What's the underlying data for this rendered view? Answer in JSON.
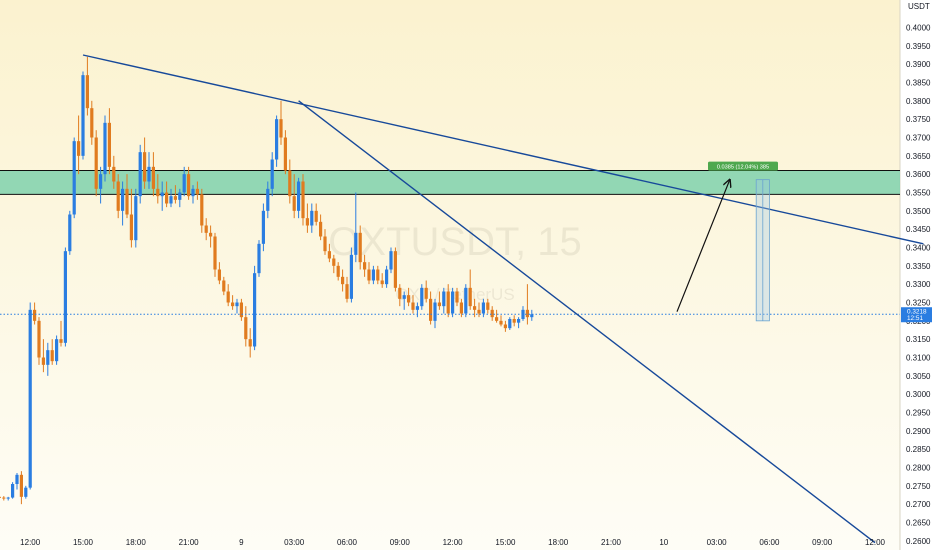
{
  "chart_data": {
    "type": "candlestick",
    "symbol": "OXTUSDT",
    "interval": "15",
    "watermark_main": "OXTUSDT, 15",
    "watermark_sub": "OXT / TetherUS",
    "quote_unit": "USDT",
    "ylim": [
      0.2575,
      0.4075
    ],
    "y_ticks": [
      "0.4000",
      "0.3950",
      "0.3900",
      "0.3850",
      "0.3800",
      "0.3750",
      "0.3700",
      "0.3650",
      "0.3600",
      "0.3550",
      "0.3500",
      "0.3450",
      "0.3400",
      "0.3350",
      "0.3300",
      "0.3250",
      "0.3200",
      "0.3150",
      "0.3100",
      "0.3050",
      "0.3000",
      "0.2950",
      "0.2900",
      "0.2850",
      "0.2800",
      "0.2750",
      "0.2700",
      "0.2650",
      "0.2600"
    ],
    "x_ticks": [
      {
        "label": "12:00",
        "bar": 8
      },
      {
        "label": "15:00",
        "bar": 20
      },
      {
        "label": "18:00",
        "bar": 32
      },
      {
        "label": "21:00",
        "bar": 44
      },
      {
        "label": "9",
        "bar": 56
      },
      {
        "label": "03:00",
        "bar": 68
      },
      {
        "label": "06:00",
        "bar": 80
      },
      {
        "label": "09:00",
        "bar": 92
      },
      {
        "label": "12:00",
        "bar": 104
      },
      {
        "label": "15:00",
        "bar": 116
      },
      {
        "label": "18:00",
        "bar": 128
      },
      {
        "label": "21:00",
        "bar": 140
      },
      {
        "label": "10",
        "bar": 152
      },
      {
        "label": "03:00",
        "bar": 164
      },
      {
        "label": "06:00",
        "bar": 176
      },
      {
        "label": "09:00",
        "bar": 188
      },
      {
        "label": "12:00",
        "bar": 200
      }
    ],
    "candles": [
      [
        0.2722,
        0.2728,
        0.2715,
        0.272
      ],
      [
        0.272,
        0.2724,
        0.2714,
        0.2718
      ],
      [
        0.2718,
        0.2722,
        0.271,
        0.2716
      ],
      [
        0.2716,
        0.272,
        0.271,
        0.2718
      ],
      [
        0.2718,
        0.276,
        0.2715,
        0.2755
      ],
      [
        0.2755,
        0.2785,
        0.274,
        0.278
      ],
      [
        0.278,
        0.279,
        0.27,
        0.272
      ],
      [
        0.272,
        0.275,
        0.2715,
        0.2745
      ],
      [
        0.2745,
        0.325,
        0.274,
        0.323
      ],
      [
        0.323,
        0.325,
        0.319,
        0.32
      ],
      [
        0.32,
        0.321,
        0.308,
        0.31
      ],
      [
        0.31,
        0.315,
        0.306,
        0.308
      ],
      [
        0.308,
        0.314,
        0.305,
        0.312
      ],
      [
        0.312,
        0.315,
        0.308,
        0.309
      ],
      [
        0.309,
        0.316,
        0.308,
        0.315
      ],
      [
        0.315,
        0.32,
        0.313,
        0.314
      ],
      [
        0.314,
        0.34,
        0.313,
        0.339
      ],
      [
        0.339,
        0.35,
        0.338,
        0.349
      ],
      [
        0.349,
        0.37,
        0.348,
        0.369
      ],
      [
        0.369,
        0.376,
        0.36,
        0.365
      ],
      [
        0.365,
        0.388,
        0.364,
        0.387
      ],
      [
        0.387,
        0.392,
        0.376,
        0.378
      ],
      [
        0.378,
        0.38,
        0.368,
        0.37
      ],
      [
        0.37,
        0.372,
        0.354,
        0.356
      ],
      [
        0.356,
        0.362,
        0.352,
        0.36
      ],
      [
        0.36,
        0.376,
        0.358,
        0.374
      ],
      [
        0.374,
        0.378,
        0.36,
        0.362
      ],
      [
        0.362,
        0.365,
        0.356,
        0.358
      ],
      [
        0.358,
        0.36,
        0.348,
        0.35
      ],
      [
        0.35,
        0.358,
        0.346,
        0.356
      ],
      [
        0.356,
        0.36,
        0.348,
        0.349
      ],
      [
        0.349,
        0.356,
        0.34,
        0.342
      ],
      [
        0.342,
        0.356,
        0.34,
        0.354
      ],
      [
        0.354,
        0.368,
        0.352,
        0.366
      ],
      [
        0.366,
        0.37,
        0.356,
        0.358
      ],
      [
        0.358,
        0.366,
        0.356,
        0.362
      ],
      [
        0.362,
        0.366,
        0.354,
        0.356
      ],
      [
        0.356,
        0.36,
        0.352,
        0.354
      ],
      [
        0.354,
        0.358,
        0.35,
        0.355
      ],
      [
        0.355,
        0.358,
        0.351,
        0.352
      ],
      [
        0.352,
        0.356,
        0.351,
        0.354
      ],
      [
        0.354,
        0.357,
        0.352,
        0.353
      ],
      [
        0.353,
        0.356,
        0.351,
        0.355
      ],
      [
        0.355,
        0.362,
        0.354,
        0.36
      ],
      [
        0.36,
        0.362,
        0.353,
        0.354
      ],
      [
        0.354,
        0.357,
        0.352,
        0.356
      ],
      [
        0.356,
        0.358,
        0.353,
        0.3545
      ],
      [
        0.3545,
        0.356,
        0.344,
        0.346
      ],
      [
        0.346,
        0.348,
        0.342,
        0.344
      ],
      [
        0.344,
        0.346,
        0.34,
        0.343
      ],
      [
        0.343,
        0.344,
        0.332,
        0.334
      ],
      [
        0.334,
        0.336,
        0.33,
        0.331
      ],
      [
        0.331,
        0.332,
        0.327,
        0.328
      ],
      [
        0.328,
        0.33,
        0.324,
        0.325
      ],
      [
        0.325,
        0.327,
        0.323,
        0.324
      ],
      [
        0.324,
        0.326,
        0.322,
        0.325
      ],
      [
        0.325,
        0.326,
        0.32,
        0.321
      ],
      [
        0.321,
        0.324,
        0.313,
        0.315
      ],
      [
        0.315,
        0.318,
        0.31,
        0.313
      ],
      [
        0.313,
        0.335,
        0.312,
        0.333
      ],
      [
        0.333,
        0.342,
        0.332,
        0.341
      ],
      [
        0.341,
        0.352,
        0.339,
        0.35
      ],
      [
        0.35,
        0.358,
        0.348,
        0.356
      ],
      [
        0.356,
        0.366,
        0.354,
        0.364
      ],
      [
        0.364,
        0.376,
        0.362,
        0.375
      ],
      [
        0.375,
        0.38,
        0.368,
        0.37
      ],
      [
        0.37,
        0.372,
        0.36,
        0.361
      ],
      [
        0.361,
        0.364,
        0.352,
        0.354
      ],
      [
        0.354,
        0.36,
        0.348,
        0.35
      ],
      [
        0.35,
        0.359,
        0.348,
        0.358
      ],
      [
        0.358,
        0.36,
        0.346,
        0.348
      ],
      [
        0.348,
        0.352,
        0.344,
        0.346
      ],
      [
        0.346,
        0.352,
        0.344,
        0.35
      ],
      [
        0.35,
        0.352,
        0.346,
        0.347
      ],
      [
        0.347,
        0.349,
        0.342,
        0.343
      ],
      [
        0.343,
        0.345,
        0.338,
        0.339
      ],
      [
        0.339,
        0.341,
        0.336,
        0.337
      ],
      [
        0.337,
        0.338,
        0.333,
        0.335
      ],
      [
        0.335,
        0.336,
        0.331,
        0.332
      ],
      [
        0.332,
        0.334,
        0.328,
        0.33
      ],
      [
        0.33,
        0.332,
        0.325,
        0.326
      ],
      [
        0.326,
        0.34,
        0.325,
        0.338
      ],
      [
        0.338,
        0.355,
        0.336,
        0.344
      ],
      [
        0.344,
        0.346,
        0.334,
        0.336
      ],
      [
        0.336,
        0.338,
        0.332,
        0.334
      ],
      [
        0.334,
        0.336,
        0.33,
        0.331
      ],
      [
        0.331,
        0.335,
        0.33,
        0.334
      ],
      [
        0.334,
        0.335,
        0.33,
        0.331
      ],
      [
        0.331,
        0.333,
        0.329,
        0.33
      ],
      [
        0.33,
        0.335,
        0.329,
        0.334
      ],
      [
        0.334,
        0.34,
        0.333,
        0.339
      ],
      [
        0.339,
        0.34,
        0.328,
        0.329
      ],
      [
        0.329,
        0.33,
        0.324,
        0.326
      ],
      [
        0.326,
        0.328,
        0.323,
        0.327
      ],
      [
        0.327,
        0.329,
        0.324,
        0.325
      ],
      [
        0.325,
        0.327,
        0.322,
        0.323
      ],
      [
        0.323,
        0.325,
        0.321,
        0.324
      ],
      [
        0.324,
        0.33,
        0.323,
        0.329
      ],
      [
        0.329,
        0.331,
        0.325,
        0.326
      ],
      [
        0.326,
        0.328,
        0.319,
        0.32
      ],
      [
        0.32,
        0.326,
        0.318,
        0.325
      ],
      [
        0.325,
        0.328,
        0.323,
        0.324
      ],
      [
        0.324,
        0.329,
        0.322,
        0.328
      ],
      [
        0.328,
        0.33,
        0.321,
        0.322
      ],
      [
        0.322,
        0.329,
        0.321,
        0.328
      ],
      [
        0.328,
        0.329,
        0.324,
        0.325
      ],
      [
        0.325,
        0.326,
        0.321,
        0.322
      ],
      [
        0.322,
        0.33,
        0.321,
        0.329
      ],
      [
        0.329,
        0.334,
        0.323,
        0.324
      ],
      [
        0.324,
        0.326,
        0.321,
        0.323
      ],
      [
        0.323,
        0.325,
        0.321,
        0.322
      ],
      [
        0.322,
        0.326,
        0.321,
        0.325
      ],
      [
        0.325,
        0.326,
        0.322,
        0.323
      ],
      [
        0.323,
        0.324,
        0.32,
        0.321
      ],
      [
        0.321,
        0.323,
        0.3195,
        0.32
      ],
      [
        0.32,
        0.3215,
        0.3185,
        0.319
      ],
      [
        0.319,
        0.32,
        0.317,
        0.318
      ],
      [
        0.318,
        0.321,
        0.3175,
        0.3205
      ],
      [
        0.3205,
        0.3215,
        0.3185,
        0.3195
      ],
      [
        0.3195,
        0.321,
        0.318,
        0.3205
      ],
      [
        0.3205,
        0.324,
        0.32,
        0.323
      ],
      [
        0.323,
        0.33,
        0.319,
        0.321
      ],
      [
        0.321,
        0.323,
        0.32,
        0.3218
      ]
    ],
    "current_price": "0.3218",
    "countdown": "12:51",
    "zone": {
      "top": 0.361,
      "bottom": 0.3545
    },
    "trendlines": [
      {
        "from": {
          "bar": 20,
          "price": 0.3925
        },
        "to": {
          "bar": 211,
          "price": 0.341
        }
      },
      {
        "from": {
          "bar": 69,
          "price": 0.38
        },
        "to": {
          "bar": 200,
          "price": 0.2595
        }
      }
    ],
    "projection": {
      "from": {
        "bar": 155,
        "price": 0.3225
      },
      "to": {
        "bar": 167,
        "price": 0.3585
      },
      "box_from_bar": 173,
      "box_to_bar": 176,
      "box_top": 0.3585,
      "box_bottom": 0.32,
      "label": "0.0385 (12.04%) 385"
    },
    "colors": {
      "up": "#2a7de1",
      "down": "#e07b1f",
      "zone_fill": "#7fd1ad",
      "zone_border": "#0f0f0f",
      "trend": "#17499a",
      "arrow": "#111111",
      "dotted": "#2a7de1",
      "bg_top": "#fbf2cf",
      "bg_bottom": "#fefdf6",
      "label_bg": "#4ea84e"
    }
  }
}
